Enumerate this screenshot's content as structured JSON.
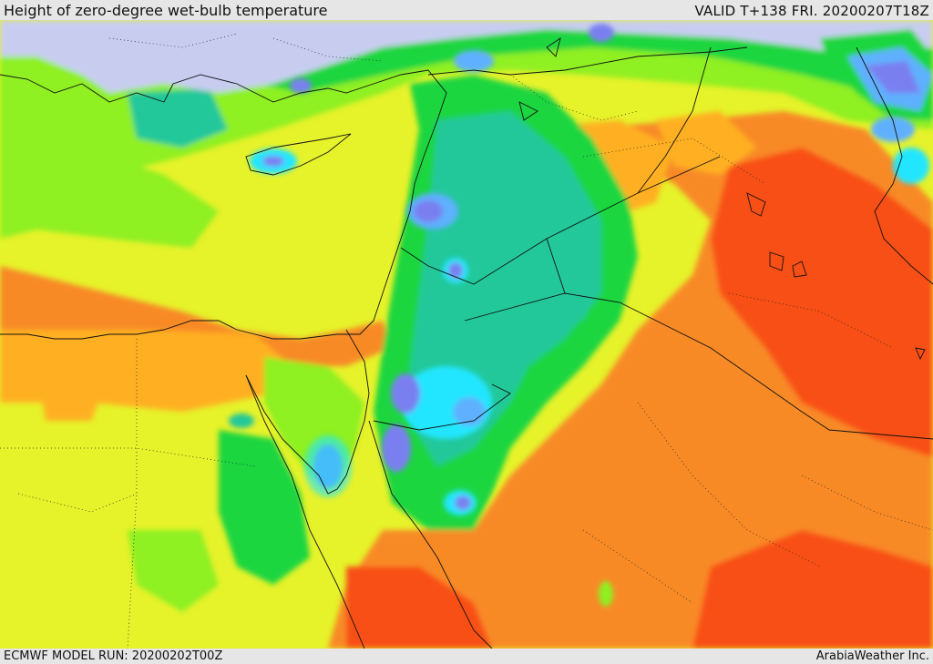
{
  "header": {
    "title": "Height of zero-degree wet-bulb temperature",
    "valid": "VALID T+138 FRI. 20200207T18Z"
  },
  "footer": {
    "model_run": "ECMWF MODEL RUN: 20200202T00Z",
    "credit": "ArabiaWeather Inc."
  },
  "map": {
    "region": "Eastern Mediterranean, Levant, Egypt, Red Sea, Arabian Peninsula",
    "color_scale": [
      "#c8cdf0",
      "#7a7ff0",
      "#5fb0ff",
      "#22e6ff",
      "#20c89a",
      "#1ad640",
      "#8ff020",
      "#e6f22a",
      "#ffb020",
      "#f88a28",
      "#f85018"
    ]
  }
}
